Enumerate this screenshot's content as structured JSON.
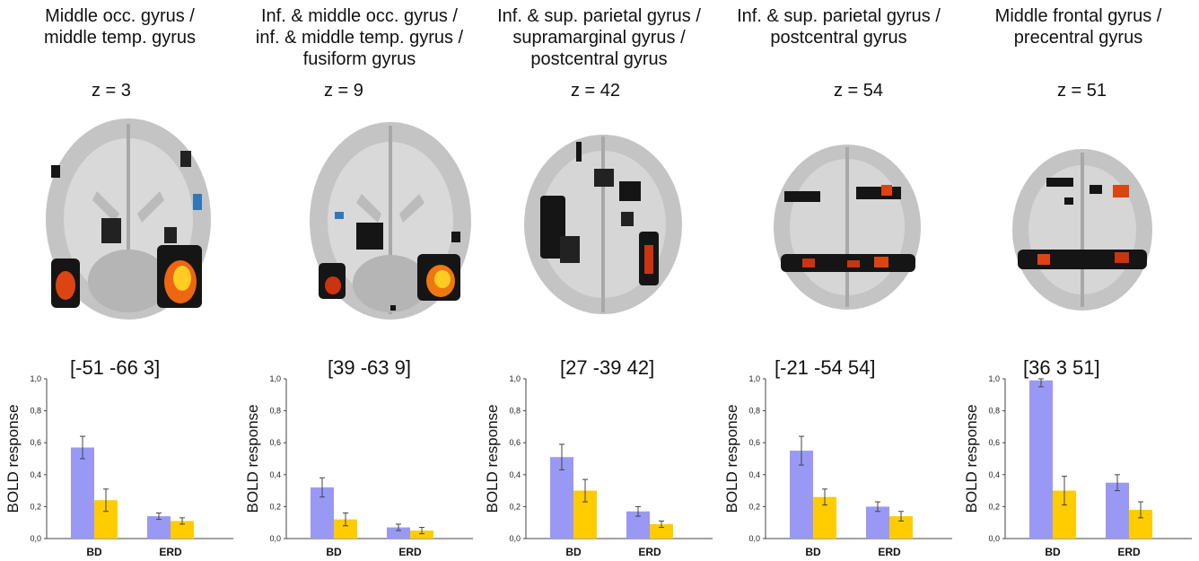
{
  "colors": {
    "bd": "#9999f5",
    "erd": "#ffcc00",
    "axis": "#444444"
  },
  "panels": [
    {
      "title": "Middle occ. gyrus /\nmiddle temp. gyrus",
      "z_label": "z = 3",
      "coordinates": "[-51 -66 3]",
      "brain_slice_icon": "axial-brain-slice-icon",
      "hemodynamic": {
        "bd": 0.57,
        "erd": 0.24
      },
      "chart": {
        "ylabel": "BOLD response"
      }
    },
    {
      "title": "Inf. & middle occ. gyrus /\ninf. & middle temp. gyrus /\nfusiform gyrus",
      "z_label": "z = 9",
      "coordinates": "[39 -63 9]",
      "brain_slice_icon": "axial-brain-slice-icon",
      "chart": {
        "ylabel": "BOLD response"
      }
    },
    {
      "title": "Inf. & sup. parietal gyrus /\nsupramarginal gyrus /\npostcentral gyrus",
      "z_label": "z = 42",
      "coordinates": "[27 -39 42]",
      "brain_slice_icon": "axial-brain-slice-icon",
      "chart": {
        "ylabel": "BOLD response"
      }
    },
    {
      "title": "Inf. & sup. parietal gyrus /\npostcentral gyrus",
      "z_label": "z = 54",
      "coordinates": "[-21 -54 54]",
      "brain_slice_icon": "axial-brain-slice-icon",
      "chart": {
        "ylabel": "BOLD response"
      }
    },
    {
      "title": "Middle frontal gyrus /\nprecentral gyrus",
      "z_label": "z = 51",
      "coordinates": "[36 3 51]",
      "brain_slice_icon": "axial-brain-slice-icon",
      "chart": {
        "ylabel": "BOLD response"
      }
    }
  ],
  "chart_data": [
    {
      "type": "bar",
      "title": "[-51 -66 3]",
      "xlabel": "",
      "ylabel": "BOLD response",
      "ylim": [
        0,
        1.0
      ],
      "yticks": [
        "0,0",
        "0,2",
        "0,4",
        "0,6",
        "0,8",
        "1,0"
      ],
      "grid": false,
      "categories": [
        "BD",
        "ERD"
      ],
      "series": [
        {
          "values": [
            0.57,
            0.14
          ],
          "errors": [
            0.07,
            0.02
          ]
        },
        {
          "values": [
            0.24,
            0.11
          ],
          "errors": [
            0.07,
            0.02
          ]
        }
      ]
    },
    {
      "type": "bar",
      "title": "[39 -63 9]",
      "xlabel": "",
      "ylabel": "BOLD response",
      "ylim": [
        0,
        1.0
      ],
      "yticks": [
        "0,0",
        "0,2",
        "0,4",
        "0,6",
        "0,8",
        "1,0"
      ],
      "grid": false,
      "categories": [
        "BD",
        "ERD"
      ],
      "series": [
        {
          "values": [
            0.32,
            0.07
          ],
          "errors": [
            0.06,
            0.02
          ]
        },
        {
          "values": [
            0.12,
            0.05
          ],
          "errors": [
            0.04,
            0.02
          ]
        }
      ]
    },
    {
      "type": "bar",
      "title": "[27 -39 42]",
      "xlabel": "",
      "ylabel": "BOLD response",
      "ylim": [
        0,
        1.0
      ],
      "yticks": [
        "0,0",
        "0,2",
        "0,4",
        "0,6",
        "0,8",
        "1,0"
      ],
      "grid": false,
      "categories": [
        "BD",
        "ERD"
      ],
      "series": [
        {
          "values": [
            0.51,
            0.17
          ],
          "errors": [
            0.08,
            0.03
          ]
        },
        {
          "values": [
            0.3,
            0.09
          ],
          "errors": [
            0.07,
            0.02
          ]
        }
      ]
    },
    {
      "type": "bar",
      "title": "[-21 -54 54]",
      "xlabel": "",
      "ylabel": "BOLD response",
      "ylim": [
        0,
        1.0
      ],
      "yticks": [
        "0,0",
        "0,2",
        "0,4",
        "0,6",
        "0,8",
        "1,0"
      ],
      "grid": false,
      "categories": [
        "BD",
        "ERD"
      ],
      "series": [
        {
          "values": [
            0.55,
            0.2
          ],
          "errors": [
            0.09,
            0.03
          ]
        },
        {
          "values": [
            0.26,
            0.14
          ],
          "errors": [
            0.05,
            0.03
          ]
        }
      ]
    },
    {
      "type": "bar",
      "title": "[36 3 51]",
      "xlabel": "",
      "ylabel": "BOLD response",
      "ylim": [
        0,
        1.0
      ],
      "yticks": [
        "0,0",
        "0,2",
        "0,4",
        "0,6",
        "0,8",
        "1,0"
      ],
      "grid": false,
      "categories": [
        "BD",
        "ERD"
      ],
      "series": [
        {
          "values": [
            0.99,
            0.35
          ],
          "errors": [
            0.04,
            0.05
          ]
        },
        {
          "values": [
            0.3,
            0.18
          ],
          "errors": [
            0.09,
            0.05
          ]
        }
      ]
    }
  ]
}
